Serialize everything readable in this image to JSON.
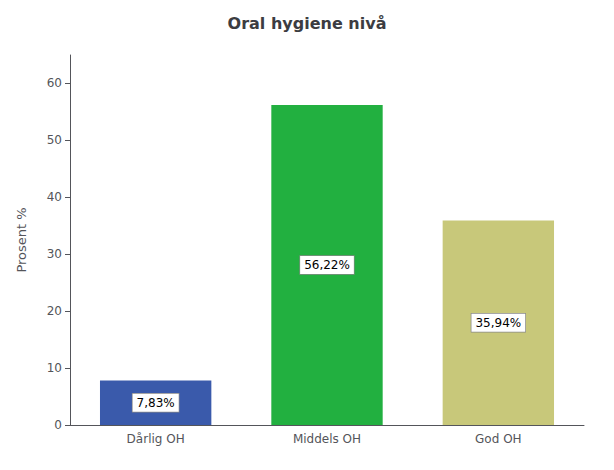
{
  "chart_data": {
    "type": "bar",
    "title": "Oral hygiene nivå",
    "categories": [
      "Dårlig OH",
      "Middels OH",
      "God OH"
    ],
    "values": [
      7.83,
      56.22,
      35.94
    ],
    "value_labels": [
      "7,83%",
      "56,22%",
      "35,94%"
    ],
    "data_labels": true,
    "colors": [
      "#3a5aab",
      "#22b040",
      "#c8c87a"
    ],
    "ylabel": "Prosent %",
    "ylim": [
      0,
      65
    ],
    "yticks": [
      0,
      10,
      20,
      30,
      40,
      50,
      60
    ],
    "grid": false
  }
}
